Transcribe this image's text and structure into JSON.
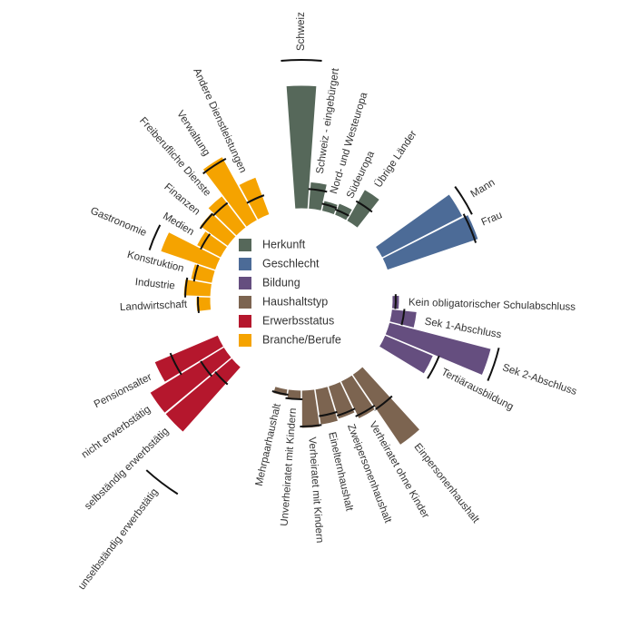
{
  "chart_data": {
    "type": "radial_bar",
    "ylim": [
      0,
      100
    ],
    "groups": [
      {
        "name": "Herkunft",
        "color": "#56685a",
        "categories": [
          "Schweiz",
          "Schweiz - eingebürgert",
          "Nord- und Westeuropa",
          "Südeuropa",
          "Übrige Länder"
        ],
        "values": [
          68,
          15,
          6,
          7,
          20
        ],
        "markers": [
          82,
          11,
          4,
          3,
          12
        ]
      },
      {
        "name": "Geschlecht",
        "color": "#4c6b97",
        "categories": [
          "Mann",
          "Frau"
        ],
        "values": [
          50,
          53
        ],
        "markers": [
          55,
          51
        ]
      },
      {
        "name": "Bildung",
        "color": "#654e7f",
        "categories": [
          "Kein obligatorischer Schulabschluss",
          "Sek 1-Abschluss",
          "Sek 2-Abschluss",
          "Tertiärausbildung"
        ],
        "values": [
          4,
          14,
          58,
          29
        ],
        "markers": [
          2,
          7,
          62,
          32
        ]
      },
      {
        "name": "Haushaltstyp",
        "color": "#7c6450",
        "categories": [
          "Einpersonenhaushalt",
          "Verheiratet ohne Kinder",
          "Zweipersonenhaushalt",
          "Einelternhaushalt",
          "Verheiratet mit Kindern",
          "Unverheiratet mit Kindern",
          "Mehrpaarhaushalt"
        ],
        "values": [
          47,
          23,
          19,
          20,
          21,
          5,
          4
        ],
        "markers": [
          23,
          21,
          17,
          15,
          20,
          5,
          3
        ]
      },
      {
        "name": "Erwerbsstatus",
        "color": "#b5172d",
        "categories": [
          "unselbständig erwerbstätig",
          "selbständig erwerbstätig",
          "nicht erwerbstätig",
          "Pensionsalter"
        ],
        "values": [
          0,
          48,
          48,
          38
        ],
        "markers": [
          77,
          12,
          15,
          28
        ]
      },
      {
        "name": "Branche/Berufe",
        "color": "#f5a300",
        "categories": [
          "Landwirtschaft",
          "Industrie",
          "Konstruktion",
          "Gastronomie",
          "Medien",
          "Finanzen",
          "Freiberufliche Dienste",
          "Verwaltung",
          "Andere Dienstleistungen"
        ],
        "values": [
          8,
          15,
          12,
          32,
          15,
          19,
          22,
          40,
          22
        ],
        "markers": [
          7,
          14,
          10,
          38,
          12,
          18,
          17,
          38,
          11
        ]
      }
    ]
  }
}
